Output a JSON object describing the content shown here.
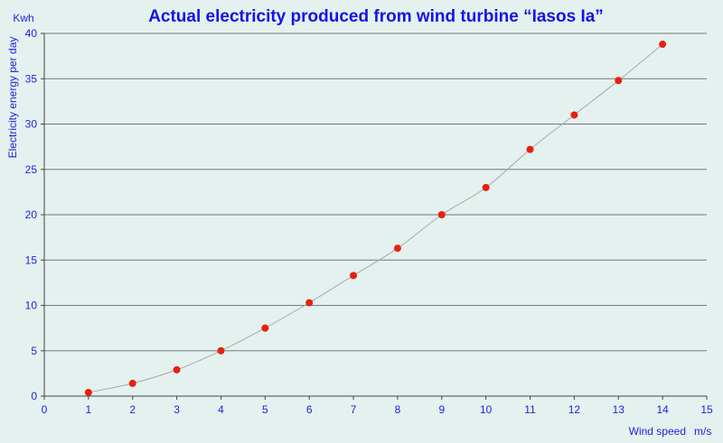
{
  "colors": {
    "background": "#e4f1ee",
    "text": "#1f1fe0",
    "title": "#1414e6",
    "grid": "#6e7a7c",
    "axis": "#444444",
    "curve": "#a8a8a8",
    "point": "#e8200f"
  },
  "chart_data": {
    "type": "line",
    "title": "Actual electricity produced from wind turbine “Iasos Ia”",
    "ylabel": "Electricity energy per day",
    "yunit": "Kwh",
    "xlabel": "Wind speed",
    "xunit": "m/s",
    "xlim": [
      0,
      15
    ],
    "ylim": [
      0,
      40
    ],
    "xticks": [
      0,
      1,
      2,
      3,
      4,
      5,
      6,
      7,
      8,
      9,
      10,
      11,
      12,
      13,
      14,
      15
    ],
    "yticks": [
      0,
      5,
      10,
      15,
      20,
      25,
      30,
      35,
      40
    ],
    "grid": "horizontal",
    "legend": "none",
    "series": [
      {
        "x": [
          1,
          2,
          3,
          4,
          5,
          6,
          7,
          8,
          9,
          10,
          11,
          12,
          13,
          14
        ],
        "y": [
          0.4,
          1.4,
          2.9,
          5.0,
          7.5,
          10.3,
          13.3,
          16.3,
          20.0,
          23.0,
          27.2,
          31.0,
          34.8,
          38.8
        ]
      }
    ]
  }
}
